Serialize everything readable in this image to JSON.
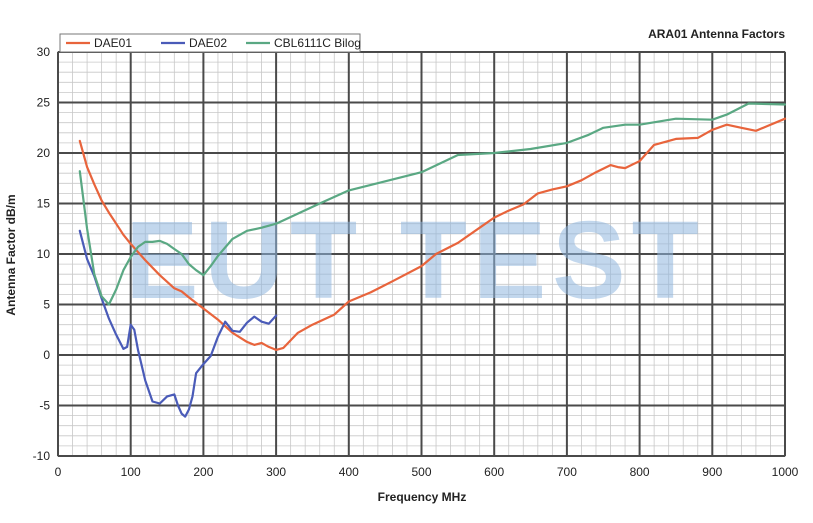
{
  "chart_data": {
    "type": "line",
    "title": "ARA01 Antenna Factors",
    "xlabel": "Frequency MHz",
    "ylabel": "Antenna Factor dB/m",
    "xlim": [
      0,
      1000
    ],
    "ylim": [
      -10,
      30
    ],
    "x_ticks": [
      "0",
      "100",
      "200",
      "300",
      "400",
      "500",
      "600",
      "700",
      "800",
      "900",
      "1000"
    ],
    "y_ticks": [
      "-10",
      "-5",
      "0",
      "5",
      "10",
      "15",
      "20",
      "25",
      "30"
    ],
    "grid": true,
    "legend_position": "top-left",
    "watermark": "EUT TEST",
    "series": [
      {
        "name": "DAE01",
        "color": "#e8643c",
        "x": [
          30,
          40,
          50,
          60,
          70,
          80,
          90,
          100,
          120,
          140,
          160,
          170,
          180,
          200,
          220,
          240,
          260,
          270,
          280,
          290,
          300,
          310,
          330,
          350,
          380,
          400,
          430,
          460,
          500,
          520,
          550,
          580,
          600,
          620,
          640,
          660,
          680,
          700,
          720,
          740,
          760,
          770,
          780,
          800,
          820,
          850,
          880,
          900,
          920,
          940,
          960,
          1000
        ],
        "y": [
          21.2,
          18.6,
          16.9,
          15.3,
          14.1,
          13.0,
          11.9,
          11.0,
          9.4,
          7.9,
          6.6,
          6.3,
          5.7,
          4.6,
          3.5,
          2.2,
          1.3,
          1.0,
          1.2,
          0.8,
          0.5,
          0.7,
          2.2,
          3.0,
          4.0,
          5.3,
          6.2,
          7.3,
          8.8,
          10.0,
          11.1,
          12.6,
          13.6,
          14.3,
          14.9,
          16.0,
          16.4,
          16.7,
          17.3,
          18.1,
          18.8,
          18.6,
          18.5,
          19.2,
          20.8,
          21.4,
          21.5,
          22.3,
          22.8,
          22.5,
          22.2,
          23.4
        ]
      },
      {
        "name": "DAE02",
        "color": "#4a5bb8",
        "x": [
          30,
          40,
          50,
          60,
          70,
          80,
          90,
          95,
          100,
          105,
          110,
          120,
          130,
          140,
          150,
          160,
          165,
          170,
          175,
          180,
          185,
          190,
          200,
          210,
          220,
          230,
          240,
          250,
          260,
          270,
          280,
          290,
          300
        ],
        "y": [
          12.3,
          9.5,
          7.8,
          5.6,
          3.6,
          2.0,
          0.6,
          0.8,
          3.0,
          2.5,
          0.5,
          -2.5,
          -4.6,
          -4.8,
          -4.1,
          -3.9,
          -5.0,
          -5.8,
          -6.1,
          -5.4,
          -4.1,
          -1.8,
          -0.9,
          -0.1,
          1.8,
          3.3,
          2.4,
          2.3,
          3.2,
          3.8,
          3.3,
          3.1,
          3.9
        ]
      },
      {
        "name": "CBL6111C Bilog",
        "color": "#5aa883",
        "x": [
          30,
          40,
          50,
          60,
          70,
          80,
          90,
          100,
          110,
          120,
          130,
          140,
          150,
          160,
          170,
          180,
          190,
          200,
          210,
          220,
          240,
          260,
          280,
          300,
          330,
          360,
          400,
          450,
          500,
          550,
          600,
          650,
          700,
          730,
          750,
          780,
          800,
          850,
          900,
          920,
          950,
          1000
        ],
        "y": [
          18.2,
          12.5,
          8.0,
          5.8,
          5.0,
          6.5,
          8.4,
          9.7,
          10.7,
          11.2,
          11.2,
          11.3,
          11.0,
          10.5,
          10.0,
          9.0,
          8.4,
          7.9,
          8.8,
          9.8,
          11.5,
          12.3,
          12.6,
          13.0,
          14.0,
          15.0,
          16.3,
          17.2,
          18.1,
          19.8,
          20.0,
          20.4,
          21.0,
          21.8,
          22.5,
          22.8,
          22.8,
          23.4,
          23.3,
          23.8,
          24.9,
          24.8
        ]
      }
    ]
  }
}
